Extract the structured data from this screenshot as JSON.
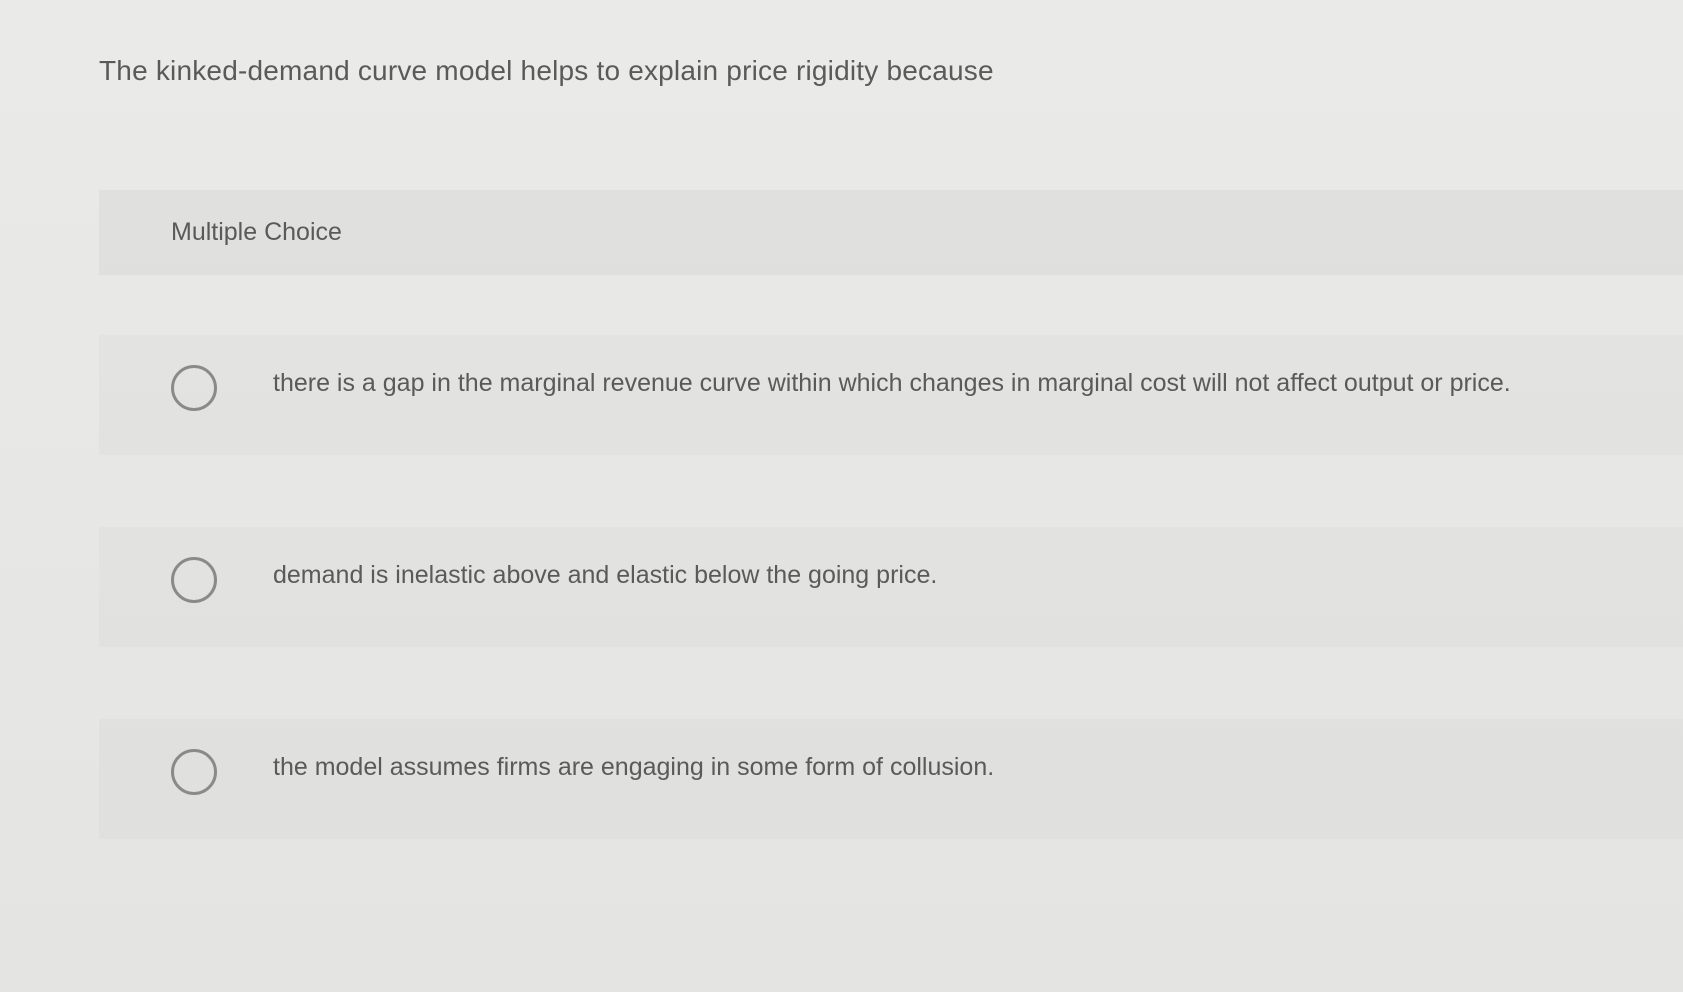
{
  "question": {
    "stem": "The kinked-demand curve model helps to explain price rigidity because",
    "type_label": "Multiple Choice",
    "options": [
      {
        "text": "there is a gap in the marginal revenue curve within which changes in marginal cost will not affect output or price."
      },
      {
        "text": "demand is inelastic above and elastic below the going price."
      },
      {
        "text": "the model assumes firms are engaging in some form of collusion."
      }
    ]
  },
  "colors": {
    "text": "#5a5a5a",
    "radio_border": "#8a8a88",
    "page_bg": "#e8e8e6",
    "panel_bg": "rgba(0,0,0,0.035)"
  }
}
